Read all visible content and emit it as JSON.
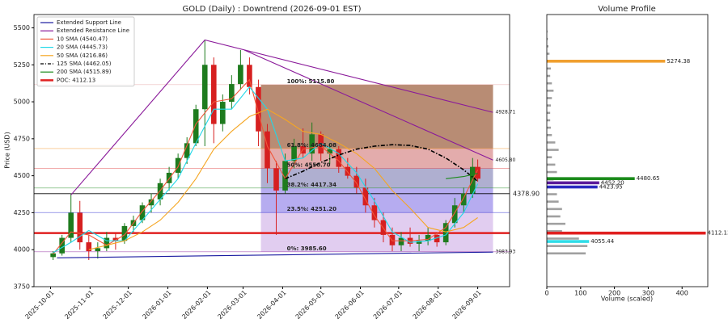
{
  "chart_data": [
    {
      "type": "candlestick",
      "title": "GOLD (Daily) : Downtrend (2026-09-01 EST)",
      "ylabel": "Price (USD)",
      "xlim": [
        "2025-09-18",
        "2026-09-26"
      ],
      "ylim": [
        3750,
        5590
      ],
      "yticks": [
        3750,
        4000,
        4250,
        4500,
        4750,
        5000,
        5250,
        5500
      ],
      "xticks": [
        "2025-10-01",
        "2025-11-01",
        "2025-12-01",
        "2026-01-01",
        "2026-02-01",
        "2026-03-01",
        "2026-04-01",
        "2026-05-01",
        "2026-06-01",
        "2026-07-01",
        "2026-08-01",
        "2026-09-01"
      ],
      "up_color": "#1e7b1e",
      "down_color": "#d62020",
      "x": [
        "2025-10-03",
        "2025-10-10",
        "2025-10-17",
        "2025-10-24",
        "2025-10-31",
        "2025-11-07",
        "2025-11-14",
        "2025-11-21",
        "2025-11-28",
        "2025-12-05",
        "2025-12-12",
        "2025-12-19",
        "2025-12-26",
        "2026-01-02",
        "2026-01-09",
        "2026-01-16",
        "2026-01-23",
        "2026-01-30",
        "2026-02-06",
        "2026-02-13",
        "2026-02-20",
        "2026-02-27",
        "2026-03-06",
        "2026-03-13",
        "2026-03-20",
        "2026-03-27",
        "2026-04-03",
        "2026-04-10",
        "2026-04-17",
        "2026-04-24",
        "2026-05-01",
        "2026-05-08",
        "2026-05-15",
        "2026-05-22",
        "2026-05-29",
        "2026-06-05",
        "2026-06-12",
        "2026-06-19",
        "2026-06-26",
        "2026-07-03",
        "2026-07-10",
        "2026-07-17",
        "2026-07-24",
        "2026-07-31",
        "2026-08-07",
        "2026-08-14",
        "2026-08-21",
        "2026-08-28",
        "2026-09-01"
      ],
      "open": [
        3950,
        3975,
        4080,
        4250,
        4050,
        3990,
        4010,
        4080,
        4060,
        4160,
        4200,
        4300,
        4340,
        4450,
        4520,
        4620,
        4720,
        4950,
        5250,
        4850,
        5000,
        5120,
        5250,
        5100,
        4800,
        4550,
        4400,
        4600,
        4700,
        4650,
        4780,
        4650,
        4680,
        4560,
        4500,
        4420,
        4300,
        4200,
        4100,
        4030,
        4080,
        4040,
        4060,
        4100,
        4050,
        4180,
        4300,
        4380,
        4560
      ],
      "high": [
        3990,
        4100,
        4380,
        4330,
        4100,
        4050,
        4120,
        4110,
        4180,
        4230,
        4320,
        4380,
        4480,
        4560,
        4650,
        4760,
        4980,
        5420,
        5300,
        5050,
        5180,
        5350,
        5300,
        5150,
        4850,
        4600,
        4650,
        4750,
        4820,
        4860,
        4800,
        4720,
        4700,
        4620,
        4560,
        4480,
        4350,
        4250,
        4150,
        4120,
        4150,
        4100,
        4150,
        4120,
        4200,
        4350,
        4420,
        4620,
        4610
      ],
      "low": [
        3930,
        3960,
        4050,
        4000,
        3930,
        3940,
        3990,
        4000,
        4040,
        4120,
        4180,
        4250,
        4300,
        4400,
        4480,
        4580,
        4700,
        4700,
        4720,
        4800,
        4950,
        5080,
        5050,
        4700,
        4450,
        4100,
        4380,
        4550,
        4620,
        4600,
        4600,
        4580,
        4520,
        4480,
        4380,
        4250,
        4150,
        4050,
        3990,
        3990,
        4020,
        3990,
        4030,
        4020,
        4030,
        4150,
        4250,
        4350,
        4460
      ],
      "close": [
        3975,
        4080,
        4250,
        4050,
        3990,
        4010,
        4080,
        4060,
        4160,
        4200,
        4300,
        4340,
        4450,
        4520,
        4620,
        4720,
        4950,
        5250,
        4850,
        5000,
        5120,
        5250,
        5100,
        4800,
        4550,
        4400,
        4600,
        4700,
        4650,
        4780,
        4650,
        4680,
        4560,
        4500,
        4420,
        4300,
        4200,
        4100,
        4030,
        4080,
        4040,
        4060,
        4100,
        4050,
        4180,
        4300,
        4380,
        4560,
        4480
      ],
      "line_x": [
        "2025-10-03",
        "2025-10-17",
        "2025-10-31",
        "2025-11-14",
        "2025-11-28",
        "2025-12-12",
        "2025-12-26",
        "2026-01-09",
        "2026-01-23",
        "2026-02-06",
        "2026-02-20",
        "2026-03-06",
        "2026-03-20",
        "2026-04-03",
        "2026-04-17",
        "2026-05-01",
        "2026-05-15",
        "2026-05-29",
        "2026-06-12",
        "2026-06-26",
        "2026-07-10",
        "2026-07-24",
        "2026-08-07",
        "2026-08-21",
        "2026-09-01"
      ],
      "lines": [
        {
          "name": "10 SMA (4540.47)",
          "color": "#f0573a",
          "dash": false,
          "values": [
            3970,
            4120,
            4100,
            4030,
            4100,
            4260,
            4400,
            4560,
            4850,
            5000,
            5020,
            5150,
            4700,
            4480,
            4680,
            4700,
            4600,
            4450,
            4230,
            4060,
            4060,
            4070,
            4150,
            4350,
            4540.47
          ]
        },
        {
          "name": "20 SMA (4445.73)",
          "color": "#20d8e8",
          "dash": false,
          "values": [
            3980,
            4050,
            4130,
            4060,
            4060,
            4200,
            4340,
            4480,
            4720,
            4950,
            4950,
            5100,
            4950,
            4600,
            4620,
            4720,
            4650,
            4520,
            4330,
            4120,
            4050,
            4060,
            4100,
            4250,
            4445.73
          ]
        },
        {
          "name": "50 SMA (4216.86)",
          "color": "#f5a623",
          "dash": false,
          "values": [
            null,
            null,
            4000,
            4030,
            4060,
            4120,
            4200,
            4320,
            4480,
            4680,
            4800,
            4900,
            4950,
            4880,
            4800,
            4780,
            4720,
            4650,
            4550,
            4400,
            4280,
            4150,
            4120,
            4150,
            4216.86
          ]
        },
        {
          "name": "125 SMA (4462.05)",
          "color": "#000000",
          "dash": true,
          "values": [
            null,
            null,
            null,
            null,
            null,
            null,
            null,
            null,
            null,
            null,
            null,
            null,
            null,
            4480,
            4530,
            4590,
            4640,
            4680,
            4700,
            4710,
            4705,
            4680,
            4620,
            4540,
            4462.05
          ]
        },
        {
          "name": "200 SMA (4515.89)",
          "color": "#1a8a1a",
          "dash": false,
          "values": [
            null,
            null,
            null,
            null,
            null,
            null,
            null,
            null,
            null,
            null,
            null,
            null,
            null,
            null,
            null,
            null,
            null,
            null,
            null,
            null,
            null,
            null,
            4480,
            4495,
            4515.89
          ]
        }
      ],
      "trendlines": [
        {
          "name": "Extended Support Line",
          "color": "#1a1aa0",
          "x": [
            "2025-10-06",
            "2026-09-13"
          ],
          "values": [
            3945,
            3983.93
          ],
          "end_label": "3983.93"
        },
        {
          "name": "Extended Resistance Line",
          "color": "#8a1a9a",
          "x": [
            "2026-01-30",
            "2026-09-13"
          ],
          "values": [
            5418,
            4928.71
          ],
          "end_label": "4928.71"
        },
        {
          "color": "#8a1a9a",
          "x": [
            "2026-03-02",
            "2026-09-13"
          ],
          "values": [
            5350,
            4605.8
          ],
          "end_label": "4605.80"
        },
        {
          "color": "#8a1a9a",
          "x": [
            "2025-10-17",
            "2026-01-30"
          ],
          "values": [
            4370,
            5418
          ]
        }
      ],
      "poc": {
        "name": "POC: 4112.13",
        "value": 4112.13,
        "color": "#e02020"
      },
      "hlines": [
        {
          "value": 4378.9,
          "color": "#000000",
          "label": "4378.90"
        }
      ],
      "fib": {
        "x": [
          "2026-03-15",
          "2026-09-13"
        ],
        "levels": [
          {
            "value": 5115.8,
            "label": "100%: 5115.80",
            "color": "#e8a0a0",
            "fill": "rgba(140,70,30,0.62)"
          },
          {
            "value": 4684.08,
            "label": "61.8%: 4684.08",
            "color": "#f09020",
            "fill": "rgba(200,90,90,0.5)"
          },
          {
            "value": 4550.7,
            "label": "50%: 4550.70",
            "color": "#e04040",
            "fill": "rgba(110,110,170,0.55)"
          },
          {
            "value": 4417.34,
            "label": "38.2%: 4417.34",
            "color": "#1a8a1a",
            "fill": "rgba(110,90,225,0.5)"
          },
          {
            "value": 4251.2,
            "label": "23.5%: 4251.20",
            "color": "#2020d0",
            "fill": "rgba(195,155,225,0.5)"
          },
          {
            "value": 3985.6,
            "label": "0%: 3985.60",
            "color": "#8a1a9a"
          }
        ]
      }
    },
    {
      "type": "hbar",
      "title": "Volume Profile",
      "xlabel": "Volume (scaled)",
      "xlim": [
        0,
        476
      ],
      "xticks": [
        0,
        100,
        200,
        300,
        400
      ],
      "ylim": [
        3750,
        5590
      ],
      "color": "#a0a0a0",
      "bins": [
        3975,
        4025,
        4075,
        4125,
        4175,
        4225,
        4275,
        4325,
        4375,
        4425,
        4475,
        4525,
        4575,
        4625,
        4675,
        4725,
        4775,
        4825,
        4875,
        4925,
        4975,
        5025,
        5075,
        5125,
        5175,
        5225,
        5275,
        5325,
        5375,
        5425,
        5475
      ],
      "values": [
        115,
        120,
        95,
        45,
        55,
        40,
        45,
        35,
        30,
        25,
        20,
        30,
        25,
        15,
        35,
        25,
        15,
        12,
        10,
        10,
        12,
        15,
        20,
        15,
        10,
        12,
        6,
        8,
        5,
        3,
        2
      ],
      "highlights": [
        {
          "price": 5274.38,
          "value": 350,
          "color": "#f0a030",
          "label": "5274.38"
        },
        {
          "price": 4480.65,
          "value": 260,
          "color": "#1a8a1a",
          "label": "4480.65"
        },
        {
          "price": 4452.2,
          "value": 155,
          "color": "#5a1a9a",
          "label": "4452.20"
        },
        {
          "price": 4423.95,
          "value": 150,
          "color": "#2a2ac0",
          "label": "4423.95"
        },
        {
          "price": 4112.13,
          "value": 470,
          "color": "#e02020",
          "label": "4112.13"
        },
        {
          "price": 4055.44,
          "value": 125,
          "color": "#30dde8",
          "label": "4055.44"
        }
      ]
    }
  ]
}
